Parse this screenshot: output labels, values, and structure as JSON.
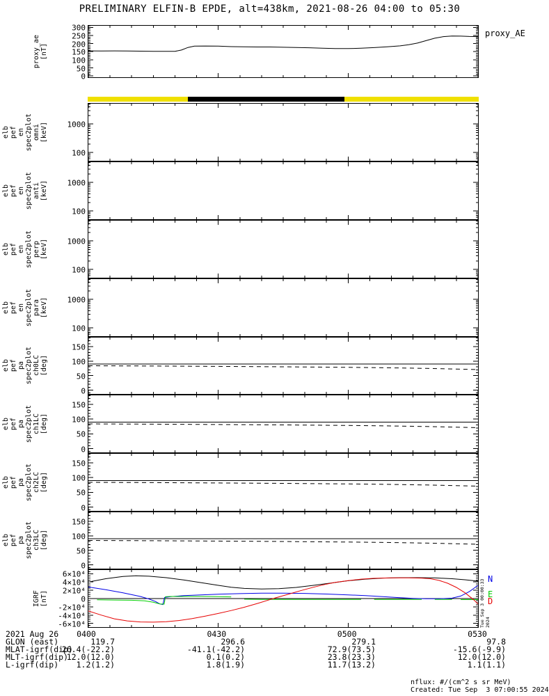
{
  "title": "PRELIMINARY ELFIN-B EPDE, alt=438km, 2021-08-26 04:00 to 05:30",
  "top_right_label": "proxy_AE",
  "side_timestamp": "Tue Sep  3 00:00:33 2024",
  "igrf_legend": [
    {
      "label": "N",
      "color": "#0000e6"
    },
    {
      "label": "E",
      "color": "#00cc00"
    },
    {
      "label": "D",
      "color": "#e60000"
    }
  ],
  "footer": {
    "date_label": "2021 Aug 26",
    "time_labels": [
      "0400",
      "0430",
      "0500",
      "0530"
    ],
    "rows": [
      {
        "label": "GLON (east)",
        "values": [
          "119.7",
          "296.6",
          "279.1",
          "97.8"
        ]
      },
      {
        "label": "MLAT-igrf(dip)",
        "values": [
          "26.4(-22.2)",
          "-41.1(-42.2)",
          "72.9(73.5)",
          "-15.6(-9.9)"
        ]
      },
      {
        "label": "MLT-igrf(dip)",
        "values": [
          "12.0(12.0)",
          "0.1(0.2)",
          "23.8(23.3)",
          "12.0(12.0)"
        ]
      },
      {
        "label": "L-igrf(dip)",
        "values": [
          "1.2(1.2)",
          "1.8(1.9)",
          "11.7(13.2)",
          "1.1(1.1)"
        ]
      }
    ],
    "notes": [
      "nflux: #/(cm^2 s sr MeV)",
      "Created: Tue Sep  3 07:00:55 2024"
    ]
  },
  "chart_data": {
    "type": "line",
    "x_unit": "minutes after 04:00 UT on 2021-08-26",
    "xaxis": {
      "min": 0,
      "max": 90,
      "majors": [
        0,
        30,
        60,
        90
      ],
      "minor_step": 5,
      "labels": [
        "0400",
        "0430",
        "0500",
        "0530"
      ]
    },
    "epoch_bar": {
      "segments": [
        {
          "from": 0,
          "to": 23.1,
          "color": "#f0e000"
        },
        {
          "from": 23.1,
          "to": 59.1,
          "color": "#000000"
        },
        {
          "from": 59.1,
          "to": 90,
          "color": "#f0e000"
        }
      ]
    },
    "panels": [
      {
        "name": "proxy-ae",
        "label_lines": [
          "proxy_ae",
          "[nT]"
        ],
        "log": false,
        "ylim": [
          -8,
          310
        ],
        "yminor": 10,
        "yticks": [
          {
            "v": 0,
            "t": "0"
          },
          {
            "v": 50,
            "t": "50"
          },
          {
            "v": 100,
            "t": "100"
          },
          {
            "v": 150,
            "t": "150"
          },
          {
            "v": 200,
            "t": "200"
          },
          {
            "v": 250,
            "t": "250"
          },
          {
            "v": 300,
            "t": "300"
          }
        ],
        "series": [
          {
            "name": "proxy_ae",
            "color": "#000000",
            "w": 1,
            "x": [
              0,
              3,
              6,
              9,
              12,
              15,
              18,
              20,
              21.5,
              23,
              24.5,
              27,
              30,
              33,
              36,
              39,
              42,
              45,
              48,
              51,
              54,
              57,
              60,
              63,
              66,
              69,
              72,
              74,
              76,
              78,
              80,
              82,
              84,
              86,
              88,
              90
            ],
            "y": [
              155,
              154,
              155,
              154,
              153,
              152,
              152,
              152,
              160,
              176,
              184,
              185,
              184,
              181,
              180,
              179,
              179,
              177,
              176,
              174,
              171,
              169,
              169,
              171,
              175,
              180,
              186,
              193,
              203,
              218,
              233,
              243,
              247,
              246,
              244,
              243
            ]
          }
        ]
      },
      {
        "name": "spec-omni",
        "label_lines": [
          "elb",
          "pef",
          "en",
          "spec2plot",
          "omni",
          "[keV]"
        ],
        "log": true,
        "ylim": [
          51,
          5200
        ],
        "yticks": [
          {
            "v": 100,
            "t": "100"
          },
          {
            "v": 1000,
            "t": "1000"
          }
        ],
        "series": []
      },
      {
        "name": "spec-anti",
        "label_lines": [
          "elb",
          "pef",
          "en",
          "spec2plot",
          "anti",
          "[keV]"
        ],
        "log": true,
        "ylim": [
          51,
          5200
        ],
        "yticks": [
          {
            "v": 100,
            "t": "100"
          },
          {
            "v": 1000,
            "t": "1000"
          }
        ],
        "series": []
      },
      {
        "name": "spec-perp",
        "label_lines": [
          "elb",
          "pef",
          "en",
          "spec2plot",
          "perp",
          "[keV]"
        ],
        "log": true,
        "ylim": [
          51,
          5200
        ],
        "yticks": [
          {
            "v": 100,
            "t": "100"
          },
          {
            "v": 1000,
            "t": "1000"
          }
        ],
        "series": []
      },
      {
        "name": "spec-para",
        "label_lines": [
          "elb",
          "pef",
          "en",
          "spec2plot",
          "para",
          "[keV]"
        ],
        "log": true,
        "ylim": [
          51,
          5200
        ],
        "yticks": [
          {
            "v": 100,
            "t": "100"
          },
          {
            "v": 1000,
            "t": "1000"
          }
        ],
        "series": []
      },
      {
        "name": "pa-ch0lc",
        "label_lines": [
          "elb",
          "pef",
          "pa",
          "spec2plot",
          "ch0LC",
          "[deg]"
        ],
        "log": false,
        "ylim": [
          -13,
          181
        ],
        "yminor": 10,
        "yticks": [
          {
            "v": 0,
            "t": "0"
          },
          {
            "v": 50,
            "t": "50"
          },
          {
            "v": 100,
            "t": "100"
          },
          {
            "v": 150,
            "t": "150"
          }
        ],
        "series": [
          {
            "name": "ninety-deg",
            "color": "#000000",
            "w": 1,
            "x": [
              0,
              90
            ],
            "y": [
              90,
              90
            ]
          },
          {
            "name": "loss-cone",
            "color": "#000000",
            "w": 1,
            "dash": "6,5",
            "x": [
              0,
              15,
              30,
              45,
              60,
              70,
              78,
              84,
              88,
              90
            ],
            "y": [
              84,
              83,
              81.8,
              80.4,
              78.6,
              76.9,
              74.9,
              73,
              71.6,
              71
            ]
          }
        ]
      },
      {
        "name": "pa-ch1lc",
        "label_lines": [
          "elb",
          "pef",
          "pa",
          "spec2plot",
          "ch1LC",
          "[deg]"
        ],
        "log": false,
        "ylim": [
          -13,
          181
        ],
        "yminor": 10,
        "yticks": [
          {
            "v": 0,
            "t": "0"
          },
          {
            "v": 50,
            "t": "50"
          },
          {
            "v": 100,
            "t": "100"
          },
          {
            "v": 150,
            "t": "150"
          }
        ],
        "series": [
          {
            "name": "ninety-deg",
            "color": "#000000",
            "w": 1,
            "x": [
              0,
              90
            ],
            "y": [
              90,
              90
            ]
          },
          {
            "name": "loss-cone",
            "color": "#000000",
            "w": 1,
            "dash": "6,5",
            "x": [
              0,
              15,
              30,
              45,
              60,
              70,
              78,
              84,
              88,
              90
            ],
            "y": [
              84,
              83,
              81.8,
              80.4,
              78.6,
              76.9,
              74.9,
              73,
              71.6,
              71
            ]
          }
        ]
      },
      {
        "name": "pa-ch2lc",
        "label_lines": [
          "elb",
          "pef",
          "pa",
          "spec2plot",
          "ch2LC",
          "[deg]"
        ],
        "log": false,
        "ylim": [
          -13,
          181
        ],
        "yminor": 10,
        "yticks": [
          {
            "v": 0,
            "t": "0"
          },
          {
            "v": 50,
            "t": "50"
          },
          {
            "v": 100,
            "t": "100"
          },
          {
            "v": 150,
            "t": "150"
          }
        ],
        "series": [
          {
            "name": "ninety-deg",
            "color": "#000000",
            "w": 1,
            "x": [
              0,
              90
            ],
            "y": [
              90,
              90
            ]
          },
          {
            "name": "loss-cone",
            "color": "#000000",
            "w": 1,
            "dash": "6,5",
            "x": [
              0,
              15,
              30,
              45,
              60,
              70,
              78,
              84,
              88,
              90
            ],
            "y": [
              84,
              83,
              81.8,
              80.4,
              78.6,
              76.9,
              74.9,
              73,
              71.6,
              71
            ]
          }
        ]
      },
      {
        "name": "pa-ch3lc",
        "label_lines": [
          "elb",
          "pef",
          "pa",
          "spec2plot",
          "ch3LC",
          "[deg]"
        ],
        "log": false,
        "ylim": [
          -13,
          181
        ],
        "yminor": 10,
        "yticks": [
          {
            "v": 0,
            "t": "0"
          },
          {
            "v": 50,
            "t": "50"
          },
          {
            "v": 100,
            "t": "100"
          },
          {
            "v": 150,
            "t": "150"
          }
        ],
        "series": [
          {
            "name": "ninety-deg",
            "color": "#000000",
            "w": 1,
            "x": [
              0,
              90
            ],
            "y": [
              90,
              90
            ]
          },
          {
            "name": "loss-cone",
            "color": "#000000",
            "w": 1,
            "dash": "6,5",
            "x": [
              0,
              15,
              30,
              45,
              60,
              70,
              78,
              84,
              88,
              90
            ],
            "y": [
              84,
              83,
              81.8,
              80.4,
              78.6,
              76.9,
              74.9,
              73,
              71.6,
              71
            ]
          }
        ]
      },
      {
        "name": "igrf",
        "label_lines": [
          "IGRF",
          "[nT]"
        ],
        "log": false,
        "ylim": [
          -6.9,
          6.9
        ],
        "yminor": 0.5,
        "value_scale": "1e4 nT",
        "yticks": [
          {
            "v": 6,
            "t": "6×10⁴"
          },
          {
            "v": 4,
            "t": "4×10⁴"
          },
          {
            "v": 2,
            "t": "2×10⁴"
          },
          {
            "v": 0,
            "t": "0"
          },
          {
            "v": -2,
            "t": "-2×10⁴"
          },
          {
            "v": -4,
            "t": "-4×10⁴"
          },
          {
            "v": -6,
            "t": "-6×10⁴"
          }
        ],
        "series": [
          {
            "name": "zero-line",
            "color": "#000000",
            "w": 1,
            "x": [
              0,
              90
            ],
            "y": [
              0,
              0
            ]
          },
          {
            "name": "B",
            "color": "#000000",
            "w": 1,
            "x": [
              0,
              4,
              8,
              11,
              14,
              18,
              22,
              26,
              30,
              33,
              36,
              40,
              44,
              48,
              52,
              56,
              60,
              64,
              68,
              72,
              76,
              80,
              84,
              87,
              90
            ],
            "y": [
              4.0,
              4.8,
              5.35,
              5.5,
              5.4,
              5.05,
              4.5,
              3.85,
              3.2,
              2.75,
              2.45,
              2.3,
              2.4,
              2.7,
              3.2,
              3.75,
              4.3,
              4.7,
              4.95,
              5.05,
              5.05,
              5.0,
              4.8,
              4.55,
              4.2
            ]
          },
          {
            "name": "N",
            "color": "#0000e6",
            "w": 1,
            "x": [
              0,
              4,
              8,
              12,
              14,
              15.5,
              16.5,
              17.2,
              17.6,
              19,
              22,
              26,
              30,
              35,
              40,
              45,
              50,
              55,
              60,
              64,
              68,
              72,
              75,
              78,
              81,
              84,
              86,
              88,
              90
            ],
            "y": [
              2.8,
              2.15,
              1.4,
              0.5,
              -0.1,
              -0.7,
              -1.3,
              -1.45,
              0.25,
              0.45,
              0.7,
              0.9,
              1.05,
              1.2,
              1.3,
              1.3,
              1.25,
              1.1,
              0.9,
              0.7,
              0.45,
              0.2,
              0.05,
              -0.05,
              -0.05,
              0.1,
              0.6,
              1.7,
              3.2
            ]
          },
          {
            "name": "E",
            "color": "#00cc00",
            "w": 1,
            "x": [
              2,
              6,
              10,
              13,
              15,
              16.5,
              17.5,
              17.8,
              19,
              22,
              26,
              30,
              33
            ],
            "y": [
              -0.3,
              -0.35,
              -0.4,
              -0.55,
              -0.9,
              -1.3,
              -1.35,
              0.45,
              0.5,
              0.5,
              0.5,
              0.45,
              0.4
            ]
          },
          {
            "name": "E",
            "color": "#00cc00",
            "w": 1,
            "x": [
              36,
              40,
              45,
              50,
              55,
              60,
              63
            ],
            "y": [
              -0.15,
              -0.2,
              -0.2,
              -0.2,
              -0.2,
              -0.2,
              -0.2
            ]
          },
          {
            "name": "E",
            "color": "#00cc00",
            "w": 1,
            "x": [
              66,
              70,
              74,
              77
            ],
            "y": [
              -0.2,
              -0.2,
              -0.2,
              -0.2
            ]
          },
          {
            "name": "E",
            "color": "#00cc00",
            "w": 1,
            "x": [
              80,
              84
            ],
            "y": [
              -0.2,
              -0.2
            ]
          },
          {
            "name": "E",
            "color": "#00cc00",
            "w": 1,
            "x": [
              86,
              90
            ],
            "y": [
              -0.25,
              -0.25
            ]
          },
          {
            "name": "D",
            "color": "#e60000",
            "w": 1,
            "x": [
              0,
              3,
              6,
              9,
              12,
              15,
              18,
              21,
              24,
              27,
              30,
              33,
              36,
              39,
              41,
              43,
              46,
              49,
              52,
              55,
              57,
              60,
              63,
              66,
              70,
              74,
              77,
              79,
              81,
              83,
              85,
              87,
              89,
              90
            ],
            "y": [
              -3.0,
              -4.0,
              -4.9,
              -5.4,
              -5.65,
              -5.7,
              -5.6,
              -5.3,
              -4.85,
              -4.25,
              -3.6,
              -2.9,
              -2.1,
              -1.2,
              -0.55,
              0.1,
              1.0,
              1.9,
              2.75,
              3.5,
              3.9,
              4.35,
              4.7,
              4.9,
              5.0,
              5.0,
              4.95,
              4.8,
              4.4,
              3.7,
              2.7,
              1.4,
              -0.3,
              -1.3
            ]
          }
        ]
      }
    ]
  }
}
